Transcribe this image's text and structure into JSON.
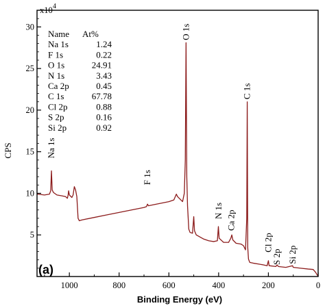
{
  "chart_data": {
    "type": "line",
    "panel_label": "(a)",
    "xlabel": "Binding Energy (eV)",
    "ylabel": "CPS",
    "y_multiplier": "x10",
    "y_multiplier_exp": "4",
    "xlim": [
      1130,
      0
    ],
    "ylim": [
      0,
      32
    ],
    "x_ticks": [
      1000,
      800,
      600,
      400,
      200,
      0
    ],
    "y_ticks": [
      5,
      10,
      15,
      20,
      25,
      30
    ],
    "x_tick_labels": [
      "1000",
      "800",
      "600",
      "400",
      "200",
      "0"
    ],
    "y_tick_labels": [
      "5",
      "10",
      "15",
      "20",
      "25",
      "30"
    ],
    "line_color": "#8b1a1a",
    "table": {
      "header": [
        "Name",
        "At%"
      ],
      "rows": [
        [
          "Na 1s",
          "1.24"
        ],
        [
          "F 1s",
          "0.22"
        ],
        [
          "O 1s",
          "24.91"
        ],
        [
          "N 1s",
          "3.43"
        ],
        [
          "Ca 2p",
          "0.45"
        ],
        [
          "C 1s",
          "67.78"
        ],
        [
          "Cl 2p",
          "0.88"
        ],
        [
          "S 2p",
          "0.16"
        ],
        [
          "Si 2p",
          "0.92"
        ]
      ]
    },
    "peak_labels": [
      {
        "text": "Na 1s",
        "x": 1072,
        "y": 14.2
      },
      {
        "text": "F 1s",
        "x": 686,
        "y": 11.0
      },
      {
        "text": "O 1s",
        "x": 531,
        "y": 28.4
      },
      {
        "text": "N 1s",
        "x": 400,
        "y": 6.9
      },
      {
        "text": "Ca 2p",
        "x": 348,
        "y": 5.5
      },
      {
        "text": "C 1s",
        "x": 285,
        "y": 21.3
      },
      {
        "text": "Cl 2p",
        "x": 200,
        "y": 2.9
      },
      {
        "text": "S 2p",
        "x": 165,
        "y": 1.4
      },
      {
        "text": "Si 2p",
        "x": 102,
        "y": 1.5
      }
    ],
    "series": [
      {
        "points": [
          [
            1130,
            9.9
          ],
          [
            1100,
            9.8
          ],
          [
            1080,
            9.9
          ],
          [
            1075,
            10.3
          ],
          [
            1072,
            12.7
          ],
          [
            1069,
            10.4
          ],
          [
            1064,
            10.1
          ],
          [
            1050,
            9.8
          ],
          [
            1030,
            9.7
          ],
          [
            1015,
            9.6
          ],
          [
            1008,
            9.4
          ],
          [
            1005,
            9.8
          ],
          [
            1003,
            10.3
          ],
          [
            1000,
            9.8
          ],
          [
            990,
            9.5
          ],
          [
            985,
            9.8
          ],
          [
            980,
            10.8
          ],
          [
            975,
            10.4
          ],
          [
            970,
            9.6
          ],
          [
            965,
            7.0
          ],
          [
            960,
            6.7
          ],
          [
            950,
            6.8
          ],
          [
            900,
            7.1
          ],
          [
            850,
            7.4
          ],
          [
            800,
            7.7
          ],
          [
            750,
            8.0
          ],
          [
            700,
            8.3
          ],
          [
            690,
            8.4
          ],
          [
            686,
            8.7
          ],
          [
            682,
            8.5
          ],
          [
            650,
            8.7
          ],
          [
            600,
            9.0
          ],
          [
            580,
            9.2
          ],
          [
            570,
            9.9
          ],
          [
            565,
            9.6
          ],
          [
            555,
            9.3
          ],
          [
            545,
            9.0
          ],
          [
            538,
            10.0
          ],
          [
            534,
            14.0
          ],
          [
            531,
            28.1
          ],
          [
            528,
            12.0
          ],
          [
            525,
            8.5
          ],
          [
            520,
            5.7
          ],
          [
            515,
            5.3
          ],
          [
            505,
            5.2
          ],
          [
            500,
            7.2
          ],
          [
            497,
            5.5
          ],
          [
            490,
            5.0
          ],
          [
            460,
            4.5
          ],
          [
            440,
            4.3
          ],
          [
            420,
            4.2
          ],
          [
            405,
            4.3
          ],
          [
            401,
            6.0
          ],
          [
            398,
            4.6
          ],
          [
            380,
            4.1
          ],
          [
            360,
            4.1
          ],
          [
            351,
            4.6
          ],
          [
            347,
            5.0
          ],
          [
            343,
            4.4
          ],
          [
            330,
            4.0
          ],
          [
            310,
            3.9
          ],
          [
            300,
            3.7
          ],
          [
            292,
            3.2
          ],
          [
            287,
            7.0
          ],
          [
            285,
            21.0
          ],
          [
            283,
            3.5
          ],
          [
            280,
            2.1
          ],
          [
            275,
            1.7
          ],
          [
            260,
            1.6
          ],
          [
            240,
            1.5
          ],
          [
            220,
            1.4
          ],
          [
            205,
            1.3
          ],
          [
            200,
            1.9
          ],
          [
            197,
            1.3
          ],
          [
            170,
            1.2
          ],
          [
            165,
            1.4
          ],
          [
            160,
            1.2
          ],
          [
            130,
            1.1
          ],
          [
            103,
            1.3
          ],
          [
            100,
            1.1
          ],
          [
            70,
            1.0
          ],
          [
            40,
            0.9
          ],
          [
            20,
            0.85
          ],
          [
            10,
            0.5
          ],
          [
            3,
            0.15
          ],
          [
            0,
            0.1
          ]
        ]
      }
    ]
  }
}
